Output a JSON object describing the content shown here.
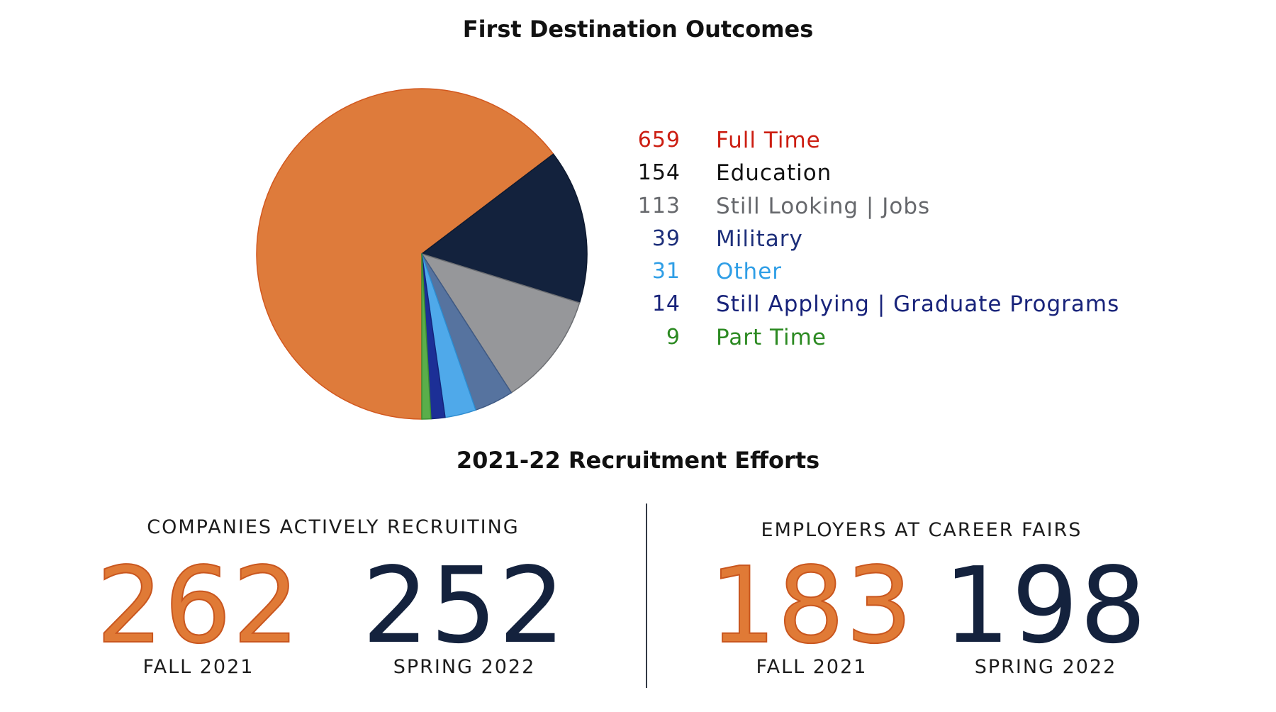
{
  "chart_data": {
    "type": "pie",
    "title": "First Destination Outcomes",
    "start_angle_deg": 180,
    "direction": "clockwise",
    "slices": [
      {
        "label": "Full Time",
        "value": 659,
        "color": "#de7b3b",
        "stroke": "#d2581f",
        "label_color": "#cc1e12"
      },
      {
        "label": "Education",
        "value": 154,
        "color": "#13223d",
        "stroke": "#0e1a30",
        "label_color": "#111111"
      },
      {
        "label": "Still Looking | Jobs",
        "value": 113,
        "color": "#96979a",
        "stroke": "#6d6f73",
        "label_color": "#66686c"
      },
      {
        "label": "Military",
        "value": 39,
        "color": "#56739f",
        "stroke": "#3f5a84",
        "label_color": "#1d2f7a"
      },
      {
        "label": "Other",
        "value": 31,
        "color": "#4fa9ea",
        "stroke": "#2e8cd0",
        "label_color": "#2f9ee6"
      },
      {
        "label": "Still Applying | Graduate Programs",
        "value": 14,
        "color": "#1c2f96",
        "stroke": "#14247a",
        "label_color": "#18237a"
      },
      {
        "label": "Part Time",
        "value": 9,
        "color": "#5aae4a",
        "stroke": "#3d8d32",
        "label_color": "#2c8a22"
      }
    ]
  },
  "recruitment": {
    "title": "2021-22 Recruitment Efforts",
    "groups": [
      {
        "heading": "COMPANIES ACTIVELY RECRUITING",
        "fall": {
          "value": "262",
          "label": "FALL 2021"
        },
        "spring": {
          "value": "252",
          "label": "SPRING 2022"
        }
      },
      {
        "heading": "EMPLOYERS AT CAREER FAIRS",
        "fall": {
          "value": "183",
          "label": "FALL 2021"
        },
        "spring": {
          "value": "198",
          "label": "SPRING 2022"
        }
      }
    ]
  }
}
